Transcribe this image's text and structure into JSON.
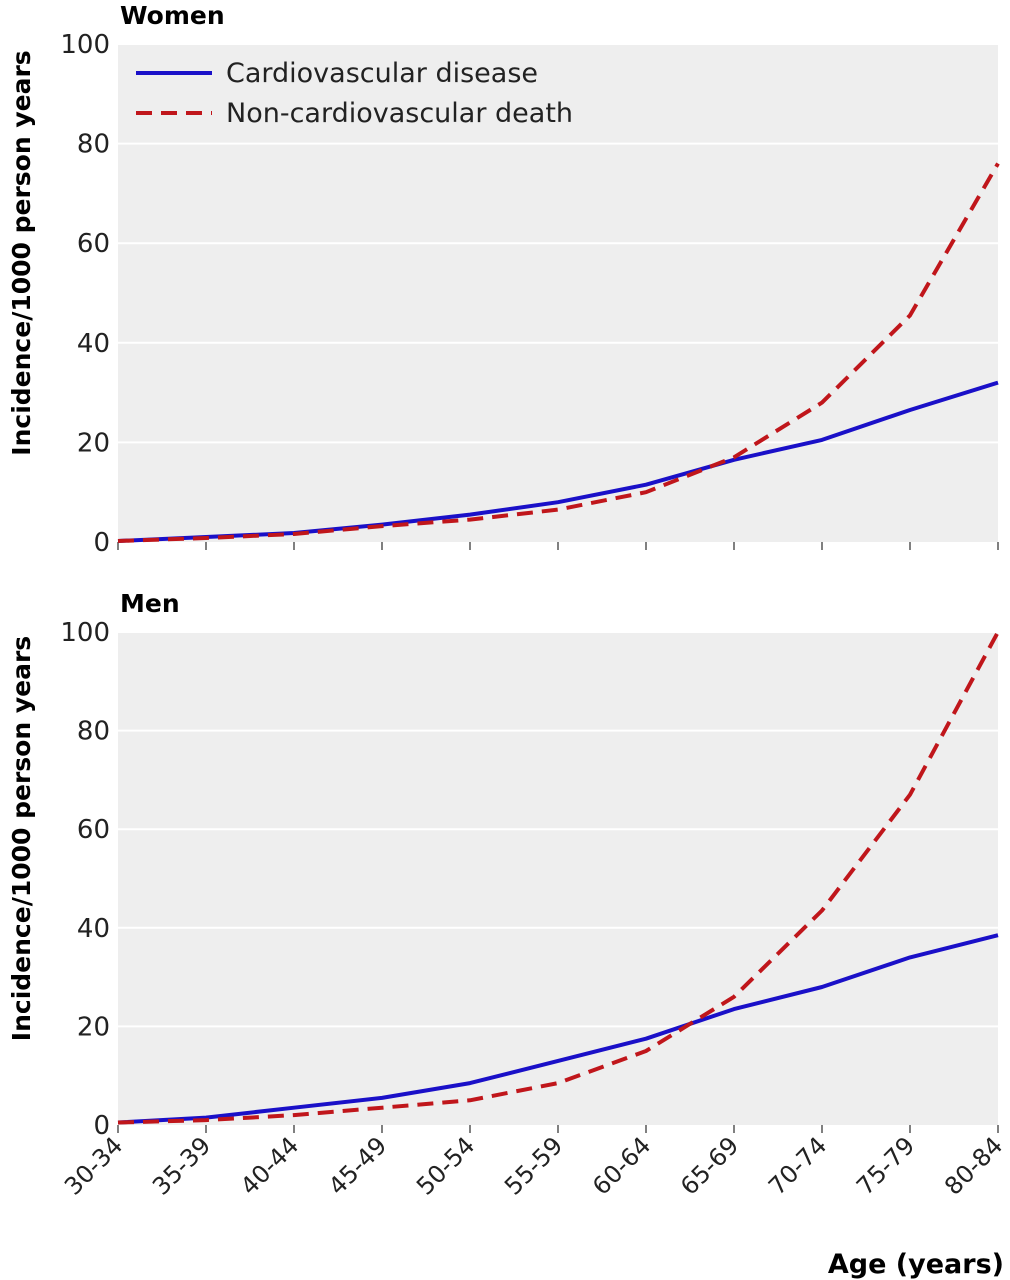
{
  "chart_data": [
    {
      "type": "line",
      "title": "Women",
      "ylabel": "Incidence/1000 person years",
      "xlabel": "",
      "ylim": [
        0,
        100
      ],
      "yticks": [
        0,
        20,
        40,
        60,
        80,
        100
      ],
      "categories": [
        "30-34",
        "35-39",
        "40-44",
        "45-49",
        "50-54",
        "55-59",
        "60-64",
        "65-69",
        "70-74",
        "75-79",
        "80-84"
      ],
      "grid": true,
      "legend": "top-left",
      "series": [
        {
          "name": "Cardiovascular disease",
          "color": "#1a10c8",
          "style": "solid",
          "values": [
            0.2,
            1.0,
            1.8,
            3.5,
            5.5,
            8.0,
            11.5,
            16.5,
            20.5,
            26.5,
            32.0
          ]
        },
        {
          "name": "Non-cardiovascular death",
          "color": "#c0161b",
          "style": "dashed",
          "values": [
            0.2,
            0.8,
            1.6,
            3.2,
            4.5,
            6.5,
            10.0,
            17.0,
            28.0,
            45.5,
            76.0
          ]
        }
      ]
    },
    {
      "type": "line",
      "title": "Men",
      "ylabel": "Incidence/1000 person years",
      "xlabel": "Age (years)",
      "ylim": [
        0,
        100
      ],
      "yticks": [
        0,
        20,
        40,
        60,
        80,
        100
      ],
      "categories": [
        "30-34",
        "35-39",
        "40-44",
        "45-49",
        "50-54",
        "55-59",
        "60-64",
        "65-69",
        "70-74",
        "75-79",
        "80-84"
      ],
      "grid": true,
      "series": [
        {
          "name": "Cardiovascular disease",
          "color": "#1a10c8",
          "style": "solid",
          "values": [
            0.5,
            1.5,
            3.5,
            5.5,
            8.5,
            13.0,
            17.5,
            23.5,
            28.0,
            34.0,
            38.5
          ]
        },
        {
          "name": "Non-cardiovascular death",
          "color": "#c0161b",
          "style": "dashed",
          "values": [
            0.5,
            1.0,
            2.0,
            3.5,
            5.0,
            8.5,
            15.0,
            26.0,
            43.5,
            67.0,
            100.0
          ]
        }
      ]
    }
  ]
}
